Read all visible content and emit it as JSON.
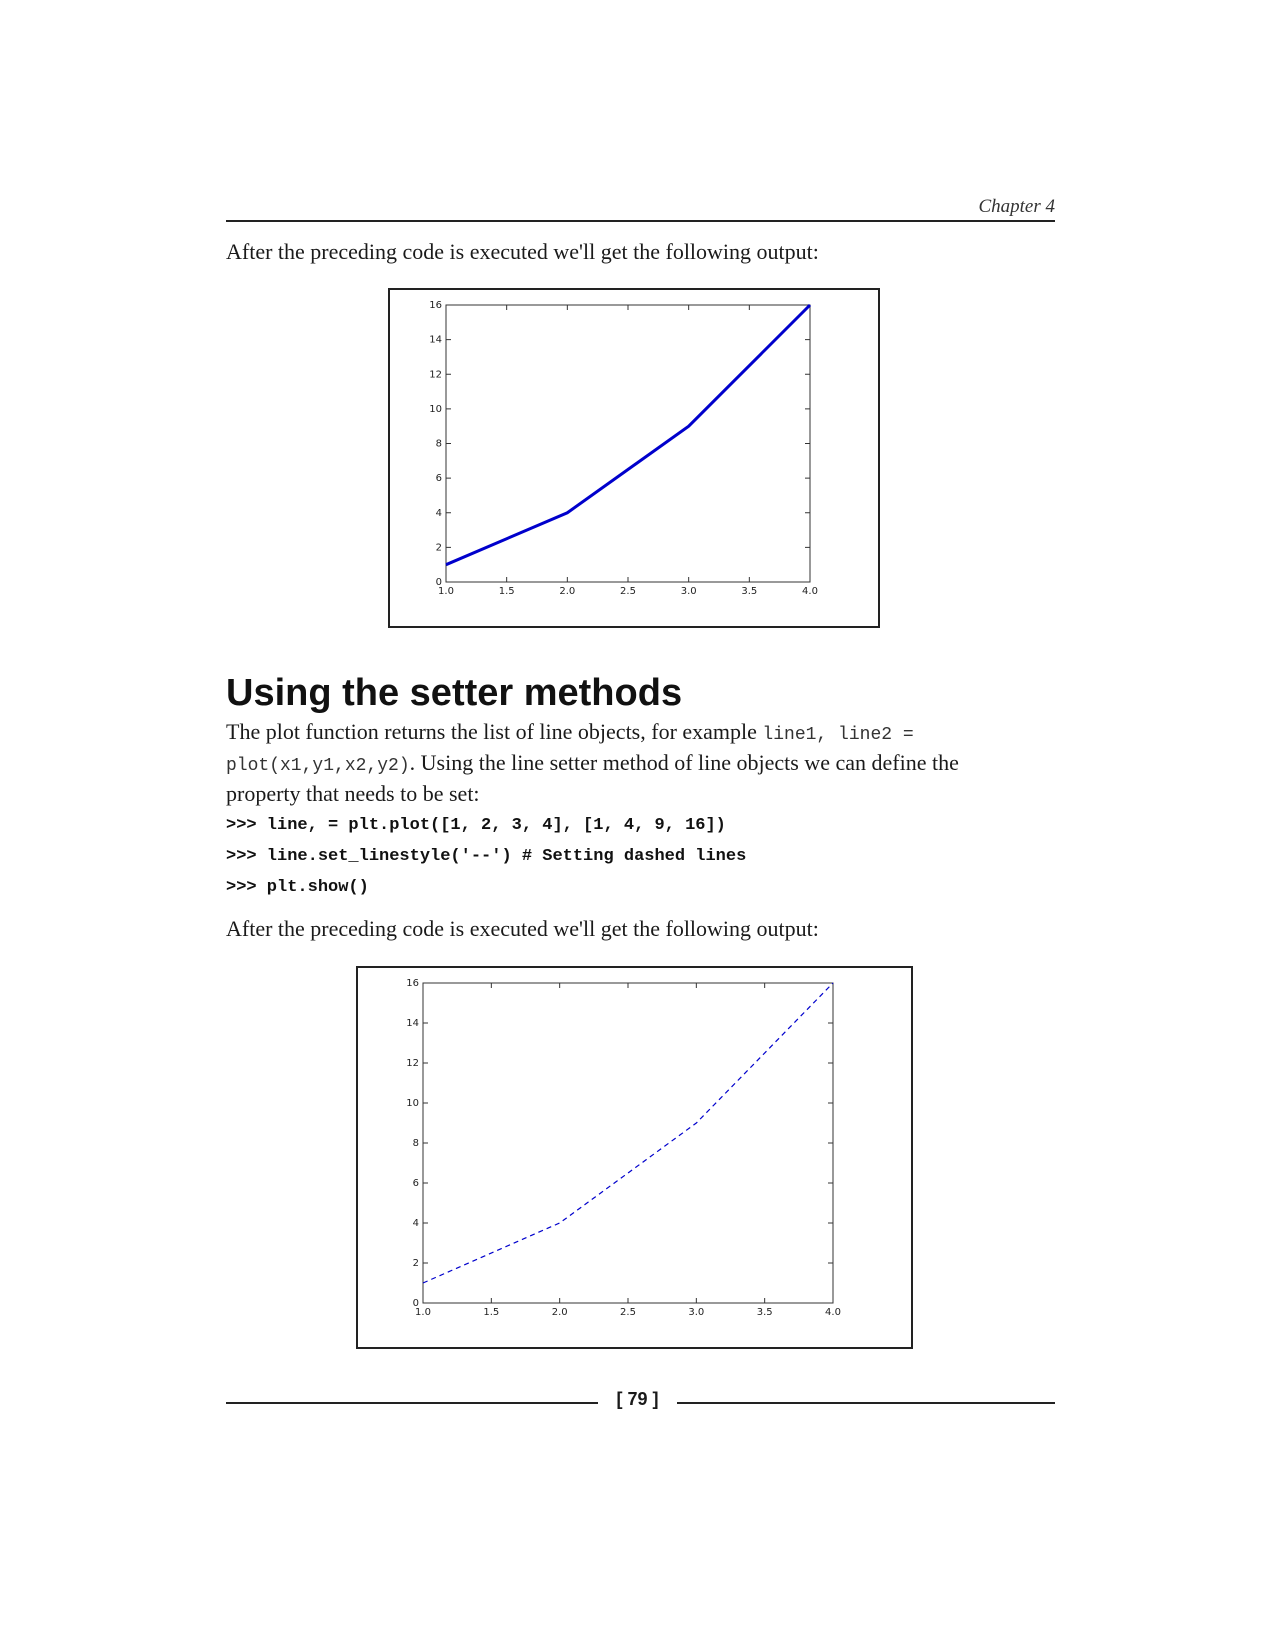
{
  "header": {
    "chapter": "Chapter 4"
  },
  "para1": "After the preceding code is executed we'll get the following output:",
  "heading": "Using the setter methods",
  "body": {
    "t1": "The plot function returns the list of line objects, for example ",
    "c1": "line1, line2 =",
    "c2": "plot(x1,y1,x2,y2)",
    "t2": ". Using the line setter method of line objects we can define the property that needs to be set:"
  },
  "code": [
    ">>> line, = plt.plot([1, 2, 3, 4], [1, 4, 9, 16])",
    ">>> line.set_linestyle('--') # Setting dashed lines",
    ">>> plt.show()"
  ],
  "para2": "After the preceding code is executed we'll get the following output:",
  "footer": {
    "page": "[ 79 ]"
  },
  "chart_data": [
    {
      "type": "line",
      "x": [
        1,
        2,
        3,
        4
      ],
      "series": [
        {
          "values": [
            1,
            4,
            9,
            16
          ],
          "color": "#0000cc",
          "style": "solid"
        }
      ],
      "xlim": [
        1.0,
        4.0
      ],
      "ylim": [
        0,
        16
      ],
      "xticks": [
        "1.0",
        "1.5",
        "2.0",
        "2.5",
        "3.0",
        "3.5",
        "4.0"
      ],
      "yticks": [
        "0",
        "2",
        "4",
        "6",
        "8",
        "10",
        "12",
        "14",
        "16"
      ],
      "grid": false
    },
    {
      "type": "line",
      "x": [
        1,
        2,
        3,
        4
      ],
      "series": [
        {
          "values": [
            1,
            4,
            9,
            16
          ],
          "color": "#0000cc",
          "style": "dashed"
        }
      ],
      "xlim": [
        1.0,
        4.0
      ],
      "ylim": [
        0,
        16
      ],
      "xticks": [
        "1.0",
        "1.5",
        "2.0",
        "2.5",
        "3.0",
        "3.5",
        "4.0"
      ],
      "yticks": [
        "0",
        "2",
        "4",
        "6",
        "8",
        "10",
        "12",
        "14",
        "16"
      ],
      "grid": false
    }
  ]
}
